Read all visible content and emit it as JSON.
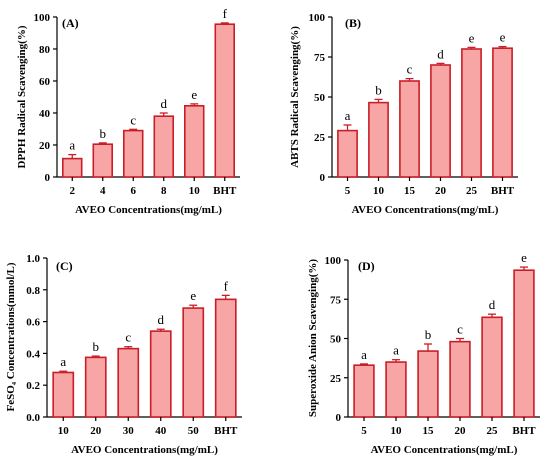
{
  "chart_data": [
    {
      "type": "bar",
      "panel_label": "(A)",
      "categories": [
        "2",
        "4",
        "6",
        "8",
        "10",
        "BHT"
      ],
      "values": [
        11.5,
        20.5,
        29,
        38,
        44.5,
        95.5
      ],
      "errors": [
        2.5,
        0.8,
        0.8,
        2,
        1.2,
        0.8
      ],
      "sig_letters": [
        "a",
        "b",
        "c",
        "d",
        "e",
        "f"
      ],
      "ylabel": "DPPH Radical Scavenging(%)",
      "xlabel": "AVEO Concentrations(mg/mL)",
      "ylim": [
        0,
        100
      ],
      "yticks": [
        "0",
        "20",
        "40",
        "60",
        "80",
        "100"
      ],
      "ytick_values": [
        0,
        20,
        40,
        60,
        80,
        100
      ]
    },
    {
      "type": "bar",
      "panel_label": "(B)",
      "categories": [
        "5",
        "10",
        "15",
        "20",
        "25",
        "BHT"
      ],
      "values": [
        29,
        46.5,
        60,
        70,
        80,
        80.5
      ],
      "errors": [
        3.5,
        2,
        1.5,
        1,
        1,
        1
      ],
      "sig_letters": [
        "a",
        "b",
        "c",
        "d",
        "e",
        "e"
      ],
      "ylabel": "ABTS Radical Scavenging(%)",
      "xlabel": "AVEO Concentrations(mg/mL)",
      "ylim": [
        0,
        100
      ],
      "yticks": [
        "0",
        "25",
        "50",
        "75",
        "100"
      ],
      "ytick_values": [
        0,
        25,
        50,
        75,
        100
      ]
    },
    {
      "type": "bar",
      "panel_label": "(C)",
      "categories": [
        "10",
        "20",
        "30",
        "40",
        "50",
        "BHT"
      ],
      "values": [
        0.28,
        0.375,
        0.43,
        0.54,
        0.685,
        0.74
      ],
      "errors": [
        0.008,
        0.008,
        0.012,
        0.012,
        0.018,
        0.025
      ],
      "sig_letters": [
        "a",
        "b",
        "c",
        "d",
        "e",
        "f"
      ],
      "ylabel": "FeSO₄ Concentrations(mmol/L)",
      "xlabel": "AVEO Concentrations(mg/mL)",
      "ylim": [
        0,
        1.0
      ],
      "yticks": [
        "0.0",
        "0.2",
        "0.4",
        "0.6",
        "0.8",
        "1.0"
      ],
      "ytick_values": [
        0,
        0.2,
        0.4,
        0.6,
        0.8,
        1.0
      ]
    },
    {
      "type": "bar",
      "panel_label": "(D)",
      "categories": [
        "5",
        "10",
        "15",
        "20",
        "25",
        "BHT"
      ],
      "values": [
        33,
        35,
        42,
        48,
        63.5,
        93.5
      ],
      "errors": [
        0.8,
        1.5,
        4.5,
        2,
        2,
        2
      ],
      "sig_letters": [
        "a",
        "a",
        "b",
        "c",
        "d",
        "e"
      ],
      "ylabel": "Superoxide Anion Scavenging(%)",
      "xlabel": "AVEO Concentrations(mg/mL)",
      "ylim": [
        0,
        100
      ],
      "yticks": [
        "0",
        "25",
        "50",
        "75",
        "100"
      ],
      "ytick_values": [
        0,
        25,
        50,
        75,
        100
      ]
    }
  ],
  "colors": {
    "bar_fill": "#f8a5a5",
    "bar_stroke": "#c81e28",
    "axis": "#000000"
  }
}
